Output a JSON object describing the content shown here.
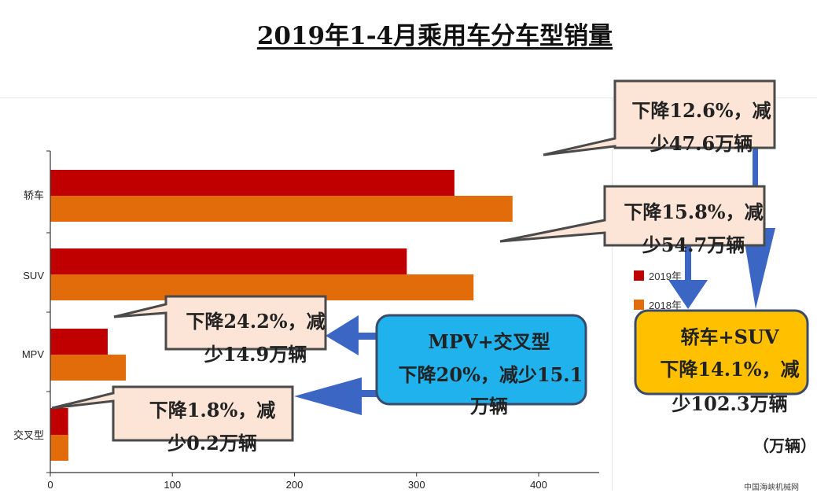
{
  "title": "2019年1-4月乘用车分车型销量",
  "unit_label": "（万辆）",
  "watermark": "中国海峡机械网",
  "colors": {
    "s2019": "#c00000",
    "s2018": "#e36c0a",
    "callout_fill": "#fce4d6",
    "blue_box": "#1fb2ec",
    "yellow_box": "#ffc000",
    "arrow": "#3b66c4"
  },
  "chart_data": {
    "type": "bar",
    "orientation": "horizontal",
    "categories": [
      "轿车",
      "SUV",
      "MPV",
      "交叉型"
    ],
    "series": [
      {
        "name": "2019年",
        "values": [
          331,
          292,
          47,
          14.6
        ]
      },
      {
        "name": "2018年",
        "values": [
          378.6,
          346.7,
          61.9,
          14.8
        ]
      }
    ],
    "xlim": [
      0,
      450
    ],
    "xticks": [
      "0",
      "100",
      "200",
      "300",
      "400"
    ],
    "title": "2019年1-4月乘用车分车型销量"
  },
  "callouts": [
    {
      "id": "sedan",
      "line1": "下降12.6%，减",
      "line2": "少47.6万辆"
    },
    {
      "id": "suv",
      "line1": "下降15.8%，减",
      "line2": "少54.7万辆"
    },
    {
      "id": "mpv",
      "line1": "下降24.2%，减",
      "line2": "少14.9万辆"
    },
    {
      "id": "cross",
      "line1": "下降1.8%，减",
      "line2": "少0.2万辆"
    }
  ],
  "mpv_cross_box": {
    "line1": "MPV+交叉型",
    "line2": "下降20%，减少15.1",
    "line3": "万辆"
  },
  "sedan_suv_box": {
    "line1": "轿车+SUV",
    "line2": "下降14.1%，减",
    "line3": "少102.3万辆"
  }
}
